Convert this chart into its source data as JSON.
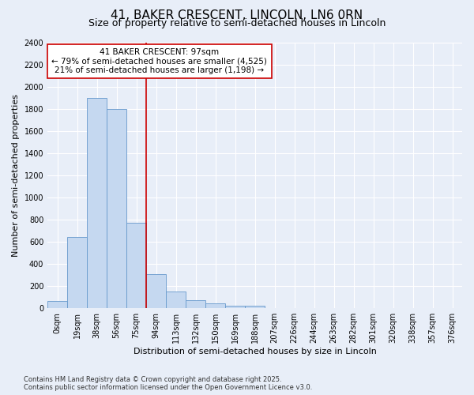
{
  "title_line1": "41, BAKER CRESCENT, LINCOLN, LN6 0RN",
  "title_line2": "Size of property relative to semi-detached houses in Lincoln",
  "xlabel": "Distribution of semi-detached houses by size in Lincoln",
  "ylabel": "Number of semi-detached properties",
  "annotation_title": "41 BAKER CRESCENT: 97sqm",
  "annotation_line1": "← 79% of semi-detached houses are smaller (4,525)",
  "annotation_line2": "21% of semi-detached houses are larger (1,198) →",
  "footer": "Contains HM Land Registry data © Crown copyright and database right 2025.\nContains public sector information licensed under the Open Government Licence v3.0.",
  "bar_categories": [
    "0sqm",
    "19sqm",
    "38sqm",
    "56sqm",
    "75sqm",
    "94sqm",
    "113sqm",
    "132sqm",
    "150sqm",
    "169sqm",
    "188sqm",
    "207sqm",
    "226sqm",
    "244sqm",
    "263sqm",
    "282sqm",
    "301sqm",
    "320sqm",
    "338sqm",
    "357sqm",
    "376sqm"
  ],
  "bar_values": [
    65,
    645,
    1900,
    1800,
    775,
    310,
    150,
    75,
    45,
    25,
    20,
    0,
    0,
    0,
    0,
    0,
    0,
    0,
    0,
    0,
    0
  ],
  "bar_color": "#c5d8f0",
  "bar_edge_color": "#6699cc",
  "vline_color": "#cc0000",
  "ylim": [
    0,
    2400
  ],
  "yticks": [
    0,
    200,
    400,
    600,
    800,
    1000,
    1200,
    1400,
    1600,
    1800,
    2000,
    2200,
    2400
  ],
  "fig_bg_color": "#e8eef8",
  "plot_bg_color": "#e8eef8",
  "grid_color": "#ffffff",
  "annotation_box_color": "#ffffff",
  "annotation_box_edge": "#cc0000",
  "title_fontsize": 11,
  "subtitle_fontsize": 9,
  "axis_label_fontsize": 8,
  "tick_fontsize": 7,
  "annotation_fontsize": 7.5,
  "footer_fontsize": 6
}
